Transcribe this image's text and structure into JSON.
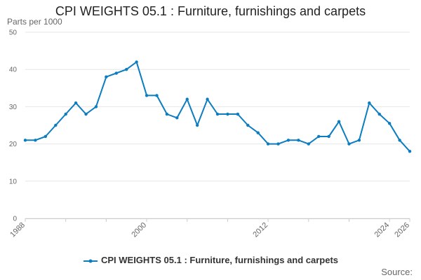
{
  "chart_data": {
    "type": "line",
    "title": "CPI WEIGHTS 05.1 : Furniture, furnishings and carpets",
    "y_unit_label": "Parts per 1000",
    "x": [
      1988,
      1989,
      1990,
      1991,
      1992,
      1993,
      1994,
      1995,
      1996,
      1997,
      1998,
      1999,
      2000,
      2001,
      2002,
      2003,
      2004,
      2005,
      2006,
      2007,
      2008,
      2009,
      2010,
      2011,
      2012,
      2013,
      2014,
      2015,
      2016,
      2017,
      2018,
      2019,
      2020,
      2021,
      2022,
      2023,
      2024,
      2025,
      2026
    ],
    "series": [
      {
        "name": "CPI WEIGHTS 05.1 : Furniture, furnishings and carpets",
        "color": "#0b7dc0",
        "values": [
          21,
          21,
          22,
          25,
          28,
          31,
          28,
          30,
          38,
          39,
          40,
          42,
          33,
          33,
          28,
          27,
          32,
          25,
          32,
          28,
          28,
          28,
          25,
          23,
          20,
          20,
          21,
          21,
          20,
          22,
          22,
          26,
          20,
          21,
          31,
          28,
          25.5,
          21,
          18
        ]
      }
    ],
    "xlim": [
      1988,
      2026
    ],
    "ylim": [
      0,
      50
    ],
    "yticks": [
      0,
      10,
      20,
      30,
      40,
      50
    ],
    "xtick_labels": [
      "1988",
      "2000",
      "2012",
      "2024",
      "2026"
    ],
    "legend_position": "bottom",
    "gridlines": "horizontal",
    "source_label": "Source:"
  }
}
